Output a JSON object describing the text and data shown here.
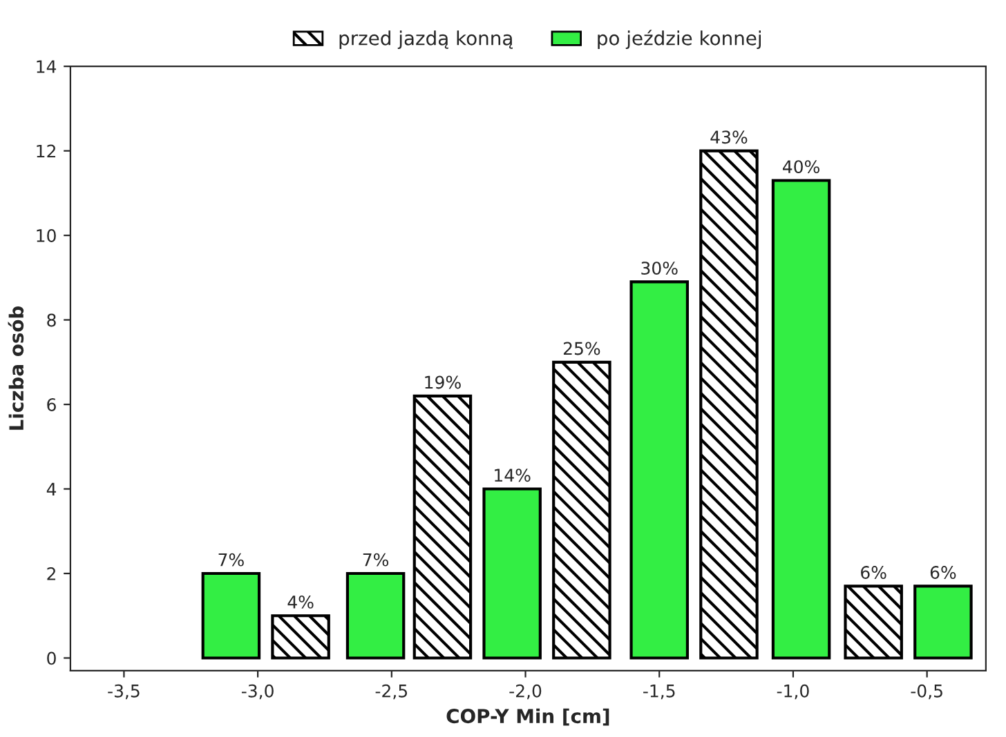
{
  "chart_data": {
    "type": "bar",
    "xlabel": "COP-Y Min [cm]",
    "ylabel": "Liczba osób",
    "series": [
      {
        "name": "przed jazdą konną",
        "color": "#000000",
        "x": [
          -2.84,
          -2.31,
          -1.79,
          -1.24,
          -0.7
        ],
        "values": [
          1,
          6.2,
          7,
          12,
          1.7
        ]
      },
      {
        "name": "po jeździe konnej",
        "color": "#33ee44",
        "x": [
          -3.1,
          -2.56,
          -2.05,
          -1.5,
          -0.97,
          -0.44
        ],
        "values": [
          2,
          2,
          4,
          8.9,
          11.3,
          1.7
        ]
      }
    ],
    "annotations": [
      {
        "text": "4%",
        "x": -2.84,
        "y": 1
      },
      {
        "text": "19%",
        "x": -2.31,
        "y": 6.2
      },
      {
        "text": "25%",
        "x": -1.79,
        "y": 7
      },
      {
        "text": "43%",
        "x": -1.24,
        "y": 12
      },
      {
        "text": "6%",
        "x": -0.7,
        "y": 1.7
      },
      {
        "text": "7%",
        "x": -3.1,
        "y": 2
      },
      {
        "text": "7%",
        "x": -2.56,
        "y": 2
      },
      {
        "text": "14%",
        "x": -2.05,
        "y": 4
      },
      {
        "text": "30%",
        "x": -1.5,
        "y": 8.9
      },
      {
        "text": "40%",
        "x": -0.97,
        "y": 11.3
      },
      {
        "text": "6%",
        "x": -0.44,
        "y": 1.7
      }
    ],
    "xlim": [
      -3.7,
      -0.28
    ],
    "xticks": [
      {
        "value": -3.5,
        "label": "-3,5"
      },
      {
        "value": -3.0,
        "label": "-3,0"
      },
      {
        "value": -2.5,
        "label": "-2,5"
      },
      {
        "value": -2.0,
        "label": "-2,0"
      },
      {
        "value": -1.5,
        "label": "-1,5"
      },
      {
        "value": -1.0,
        "label": "-1,0"
      },
      {
        "value": -0.5,
        "label": "-0,5"
      }
    ],
    "ylim": [
      -0.3,
      14
    ],
    "yticks": [
      0,
      2,
      4,
      6,
      8,
      10,
      12,
      14
    ],
    "grid": false,
    "legend": "top"
  }
}
